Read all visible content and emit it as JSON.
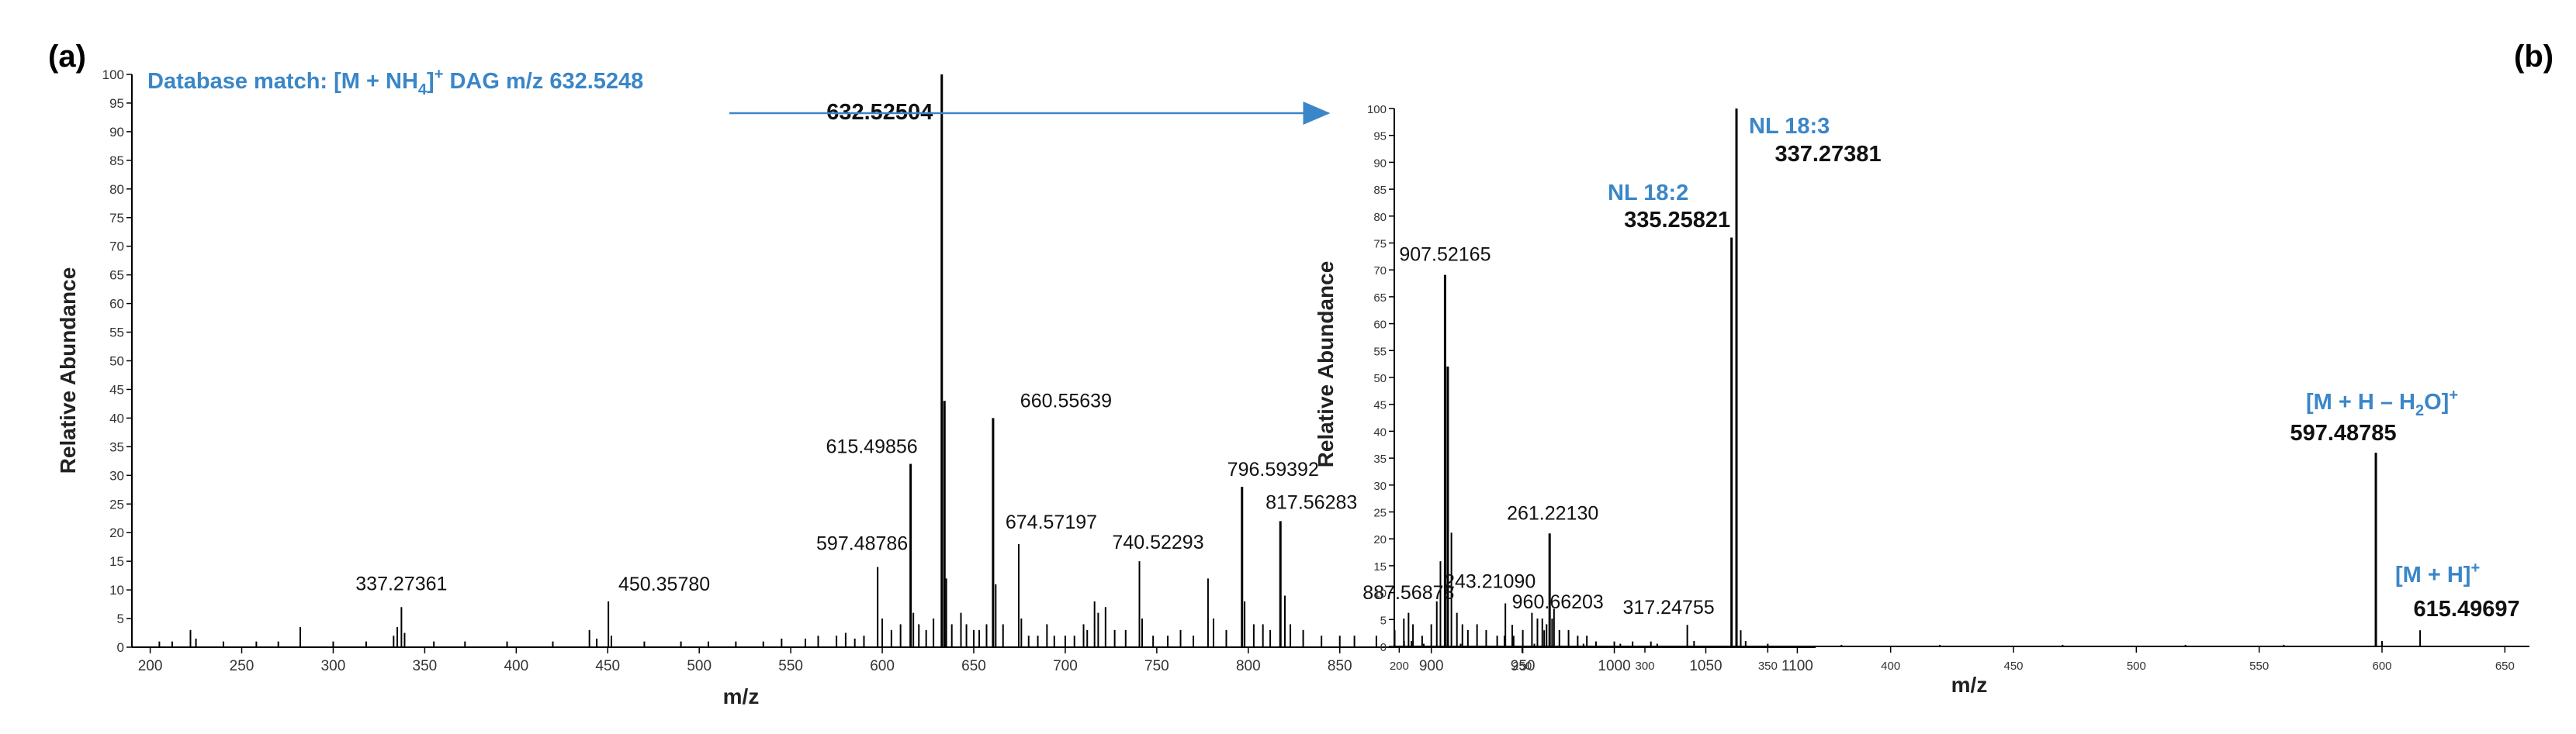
{
  "panel_a_tag": "(a)",
  "panel_b_tag": "(b)",
  "annotation_a": {
    "prefix": "Database match: [M + NH",
    "sub": "4",
    "sup": "+",
    "suffix": " DAG  m/z 632.5248"
  },
  "anno_b": {
    "nl182": "NL 18:2",
    "nl183": "NL 18:3",
    "mhh2o_a": "[M + H – H",
    "mhh2o_sub": "2",
    "mhh2o_b": "O]",
    "mhh2o_sup": "+",
    "mh_a": "[M + H]",
    "mh_sup": "+"
  },
  "colors": {
    "accent": "#3a86c8",
    "ink": "#000000"
  },
  "chart_data": [
    {
      "type": "bar",
      "panel": "(a)",
      "xlabel": "m/z",
      "ylabel": "Relative Abundance",
      "xlim": [
        190,
        1110
      ],
      "ylim": [
        0,
        100
      ],
      "x_ticks": [
        "200",
        "250",
        "300",
        "350",
        "400",
        "450",
        "500",
        "550",
        "600",
        "650",
        "700",
        "750",
        "800",
        "850",
        "900",
        "950",
        "1000",
        "1050",
        "1100"
      ],
      "y_ticks": [
        "0",
        "5",
        "10",
        "15",
        "20",
        "25",
        "30",
        "35",
        "40",
        "45",
        "50",
        "55",
        "60",
        "65",
        "70",
        "75",
        "80",
        "85",
        "90",
        "95",
        "100"
      ],
      "labels": [
        {
          "x": 337.27361,
          "text": "337.27361",
          "weight": "normal"
        },
        {
          "x": 450.3578,
          "text": "450.35780",
          "weight": "normal"
        },
        {
          "x": 597.48786,
          "text": "597.48786",
          "weight": "normal"
        },
        {
          "x": 615.49856,
          "text": "615.49856",
          "weight": "normal"
        },
        {
          "x": 632.52504,
          "text": "632.52504",
          "weight": "bold"
        },
        {
          "x": 660.55639,
          "text": "660.55639",
          "weight": "normal"
        },
        {
          "x": 674.57197,
          "text": "674.57197",
          "weight": "normal"
        },
        {
          "x": 740.52293,
          "text": "740.52293",
          "weight": "normal"
        },
        {
          "x": 796.59392,
          "text": "796.59392",
          "weight": "normal"
        },
        {
          "x": 817.56283,
          "text": "817.56283",
          "weight": "normal"
        },
        {
          "x": 887.56878,
          "text": "887.56878",
          "weight": "normal"
        },
        {
          "x": 907.52165,
          "text": "907.52165",
          "weight": "normal"
        },
        {
          "x": 960.66203,
          "text": "960.66203",
          "weight": "normal"
        }
      ],
      "peaks": [
        [
          205,
          1
        ],
        [
          212,
          1
        ],
        [
          222,
          3
        ],
        [
          225,
          1.5
        ],
        [
          240,
          1
        ],
        [
          258,
          1
        ],
        [
          270,
          1
        ],
        [
          282,
          3.5
        ],
        [
          300,
          1
        ],
        [
          318,
          1
        ],
        [
          333,
          2
        ],
        [
          335,
          3.5
        ],
        [
          337.27,
          7
        ],
        [
          339,
          2.5
        ],
        [
          355,
          1
        ],
        [
          372,
          1
        ],
        [
          395,
          1
        ],
        [
          420,
          1
        ],
        [
          440,
          3
        ],
        [
          444,
          1.5
        ],
        [
          450.36,
          8
        ],
        [
          452,
          2
        ],
        [
          470,
          1
        ],
        [
          490,
          1
        ],
        [
          505,
          1
        ],
        [
          520,
          1
        ],
        [
          535,
          1
        ],
        [
          545,
          1.5
        ],
        [
          558,
          1.5
        ],
        [
          565,
          2
        ],
        [
          575,
          2
        ],
        [
          580,
          2.5
        ],
        [
          585,
          1.5
        ],
        [
          590,
          2
        ],
        [
          597.49,
          14
        ],
        [
          600,
          5
        ],
        [
          605,
          3
        ],
        [
          610,
          4
        ],
        [
          615.5,
          32
        ],
        [
          617,
          6
        ],
        [
          620,
          4
        ],
        [
          624,
          3
        ],
        [
          628,
          5
        ],
        [
          632.52,
          100
        ],
        [
          634,
          43
        ],
        [
          635,
          12
        ],
        [
          638,
          4
        ],
        [
          643,
          6
        ],
        [
          646,
          4
        ],
        [
          650,
          3
        ],
        [
          653,
          3
        ],
        [
          657,
          4
        ],
        [
          660.56,
          40
        ],
        [
          662,
          11
        ],
        [
          666,
          4
        ],
        [
          674.57,
          18
        ],
        [
          676,
          5
        ],
        [
          680,
          2
        ],
        [
          685,
          2
        ],
        [
          690,
          4
        ],
        [
          694,
          2
        ],
        [
          700,
          2
        ],
        [
          705,
          2
        ],
        [
          710,
          4
        ],
        [
          712,
          3
        ],
        [
          716,
          8
        ],
        [
          718,
          6
        ],
        [
          722,
          7
        ],
        [
          727,
          3
        ],
        [
          733,
          3
        ],
        [
          740.52,
          15
        ],
        [
          742,
          5
        ],
        [
          748,
          2
        ],
        [
          756,
          2
        ],
        [
          763,
          3
        ],
        [
          770,
          2
        ],
        [
          778,
          12
        ],
        [
          781,
          5
        ],
        [
          788,
          3
        ],
        [
          796.59,
          28
        ],
        [
          798,
          8
        ],
        [
          803,
          4
        ],
        [
          808,
          4
        ],
        [
          812,
          3
        ],
        [
          817.56,
          22
        ],
        [
          820,
          9
        ],
        [
          823,
          4
        ],
        [
          830,
          3
        ],
        [
          840,
          2
        ],
        [
          850,
          2
        ],
        [
          858,
          2
        ],
        [
          870,
          2
        ],
        [
          880,
          3
        ],
        [
          885,
          5
        ],
        [
          887.57,
          6
        ],
        [
          890,
          4
        ],
        [
          895,
          2
        ],
        [
          900,
          4
        ],
        [
          903,
          8
        ],
        [
          905,
          15
        ],
        [
          907.52,
          65
        ],
        [
          909,
          49
        ],
        [
          911,
          20
        ],
        [
          914,
          6
        ],
        [
          917,
          4
        ],
        [
          920,
          3
        ],
        [
          925,
          4
        ],
        [
          930,
          3
        ],
        [
          936,
          2
        ],
        [
          940,
          2
        ],
        [
          945,
          2
        ],
        [
          950,
          3
        ],
        [
          955,
          6
        ],
        [
          958,
          5
        ],
        [
          960.66,
          5
        ],
        [
          963,
          4
        ],
        [
          966,
          5
        ],
        [
          970,
          3
        ],
        [
          975,
          3
        ],
        [
          980,
          2
        ],
        [
          985,
          2
        ],
        [
          990,
          1
        ],
        [
          1000,
          1
        ],
        [
          1010,
          1
        ],
        [
          1020,
          1
        ]
      ]
    },
    {
      "type": "bar",
      "panel": "(b)",
      "xlabel": "m/z",
      "ylabel": "Relative Abundance",
      "xlim": [
        198,
        660
      ],
      "ylim": [
        0,
        100
      ],
      "x_ticks": [
        "200",
        "250",
        "300",
        "350",
        "400",
        "450",
        "500",
        "550",
        "600",
        "650"
      ],
      "y_ticks": [
        "0",
        "5",
        "10",
        "15",
        "20",
        "25",
        "30",
        "35",
        "40",
        "45",
        "50",
        "55",
        "60",
        "65",
        "70",
        "75",
        "80",
        "85",
        "90",
        "95",
        "100"
      ],
      "labels": [
        {
          "x": 243.2109,
          "text": "243.21090",
          "weight": "normal"
        },
        {
          "x": 261.2213,
          "text": "261.22130",
          "weight": "normal"
        },
        {
          "x": 317.24755,
          "text": "317.24755",
          "weight": "normal"
        },
        {
          "x": 335.25821,
          "text": "335.25821",
          "weight": "bold"
        },
        {
          "x": 337.27381,
          "text": "337.27381",
          "weight": "bold"
        },
        {
          "x": 597.48785,
          "text": "597.48785",
          "weight": "bold"
        },
        {
          "x": 615.49697,
          "text": "615.49697",
          "weight": "bold"
        }
      ],
      "peaks": [
        [
          202,
          1
        ],
        [
          205,
          1
        ],
        [
          210,
          0.5
        ],
        [
          225,
          0.5
        ],
        [
          243.21,
          8
        ],
        [
          246,
          4
        ],
        [
          255,
          0.5
        ],
        [
          259,
          3
        ],
        [
          261.22,
          21
        ],
        [
          263,
          7
        ],
        [
          275,
          0.5
        ],
        [
          290,
          0.5
        ],
        [
          305,
          0.5
        ],
        [
          317.25,
          4
        ],
        [
          320,
          1
        ],
        [
          335.26,
          76
        ],
        [
          337.27,
          100
        ],
        [
          339,
          3
        ],
        [
          341,
          1
        ],
        [
          350,
          0.5
        ],
        [
          380,
          0.3
        ],
        [
          420,
          0.3
        ],
        [
          470,
          0.3
        ],
        [
          520,
          0.3
        ],
        [
          560,
          0.3
        ],
        [
          597.49,
          36
        ],
        [
          600,
          1
        ],
        [
          615.5,
          3
        ]
      ]
    }
  ]
}
